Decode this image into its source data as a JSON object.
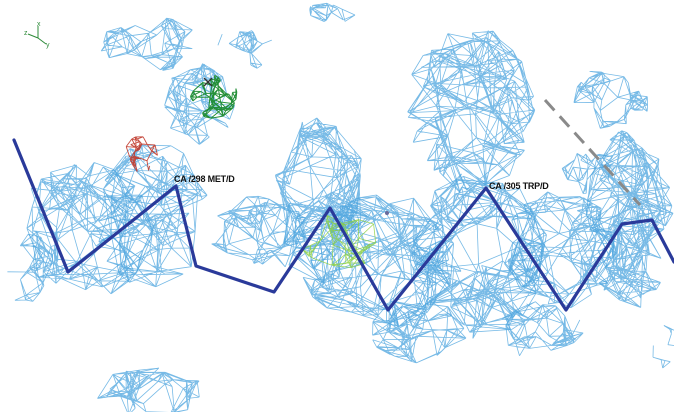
{
  "viewer": {
    "labels": [
      {
        "id": "met",
        "text": "CA /298 MET/D"
      },
      {
        "id": "trp",
        "text": "CA /305 TRP/D"
      }
    ],
    "axes": {
      "x": "x",
      "y": "y",
      "z": "z"
    }
  },
  "colors": {
    "mesh_blue": "#4aa3dd",
    "mesh_green": "#1a8a2e",
    "mesh_red": "#c0392b",
    "mesh_lime": "#8bcf3a",
    "backbone": "#2a3a9a",
    "dashed_bond": "#8a8a8a",
    "axis_green": "#2e8b3a"
  },
  "icons": [
    "axis-orientation-icon"
  ]
}
